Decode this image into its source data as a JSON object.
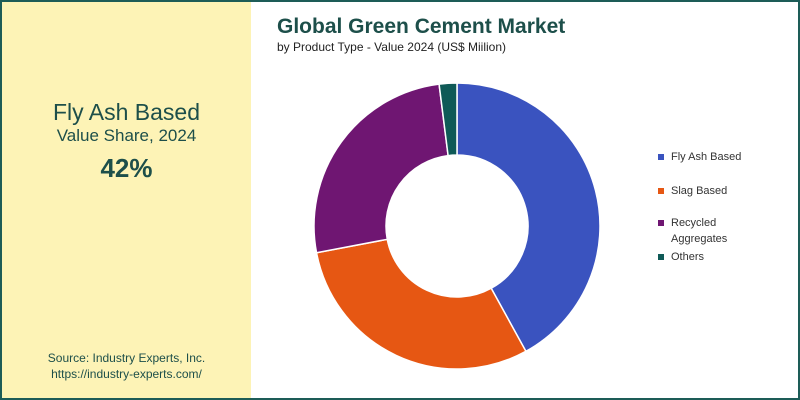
{
  "kpi": {
    "title": "Fly Ash Based",
    "subtitle": "Value Share, 2024",
    "value": "42%"
  },
  "source": {
    "line1": "Source: Industry Experts, Inc.",
    "line2": "https://industry-experts.com/"
  },
  "chart_data": {
    "type": "pie",
    "title": "Global Green Cement Market",
    "subtitle": "by Product Type - Value 2024 (US$ Miilion)",
    "donut": true,
    "legend_position": "right",
    "categories": [
      "Fly Ash Based",
      "Slag Based",
      "Recycled Aggregates",
      "Others"
    ],
    "values": [
      42,
      30,
      26,
      2
    ],
    "colors": [
      "#3a53bf",
      "#e65713",
      "#6f1672",
      "#0f5a57"
    ]
  }
}
